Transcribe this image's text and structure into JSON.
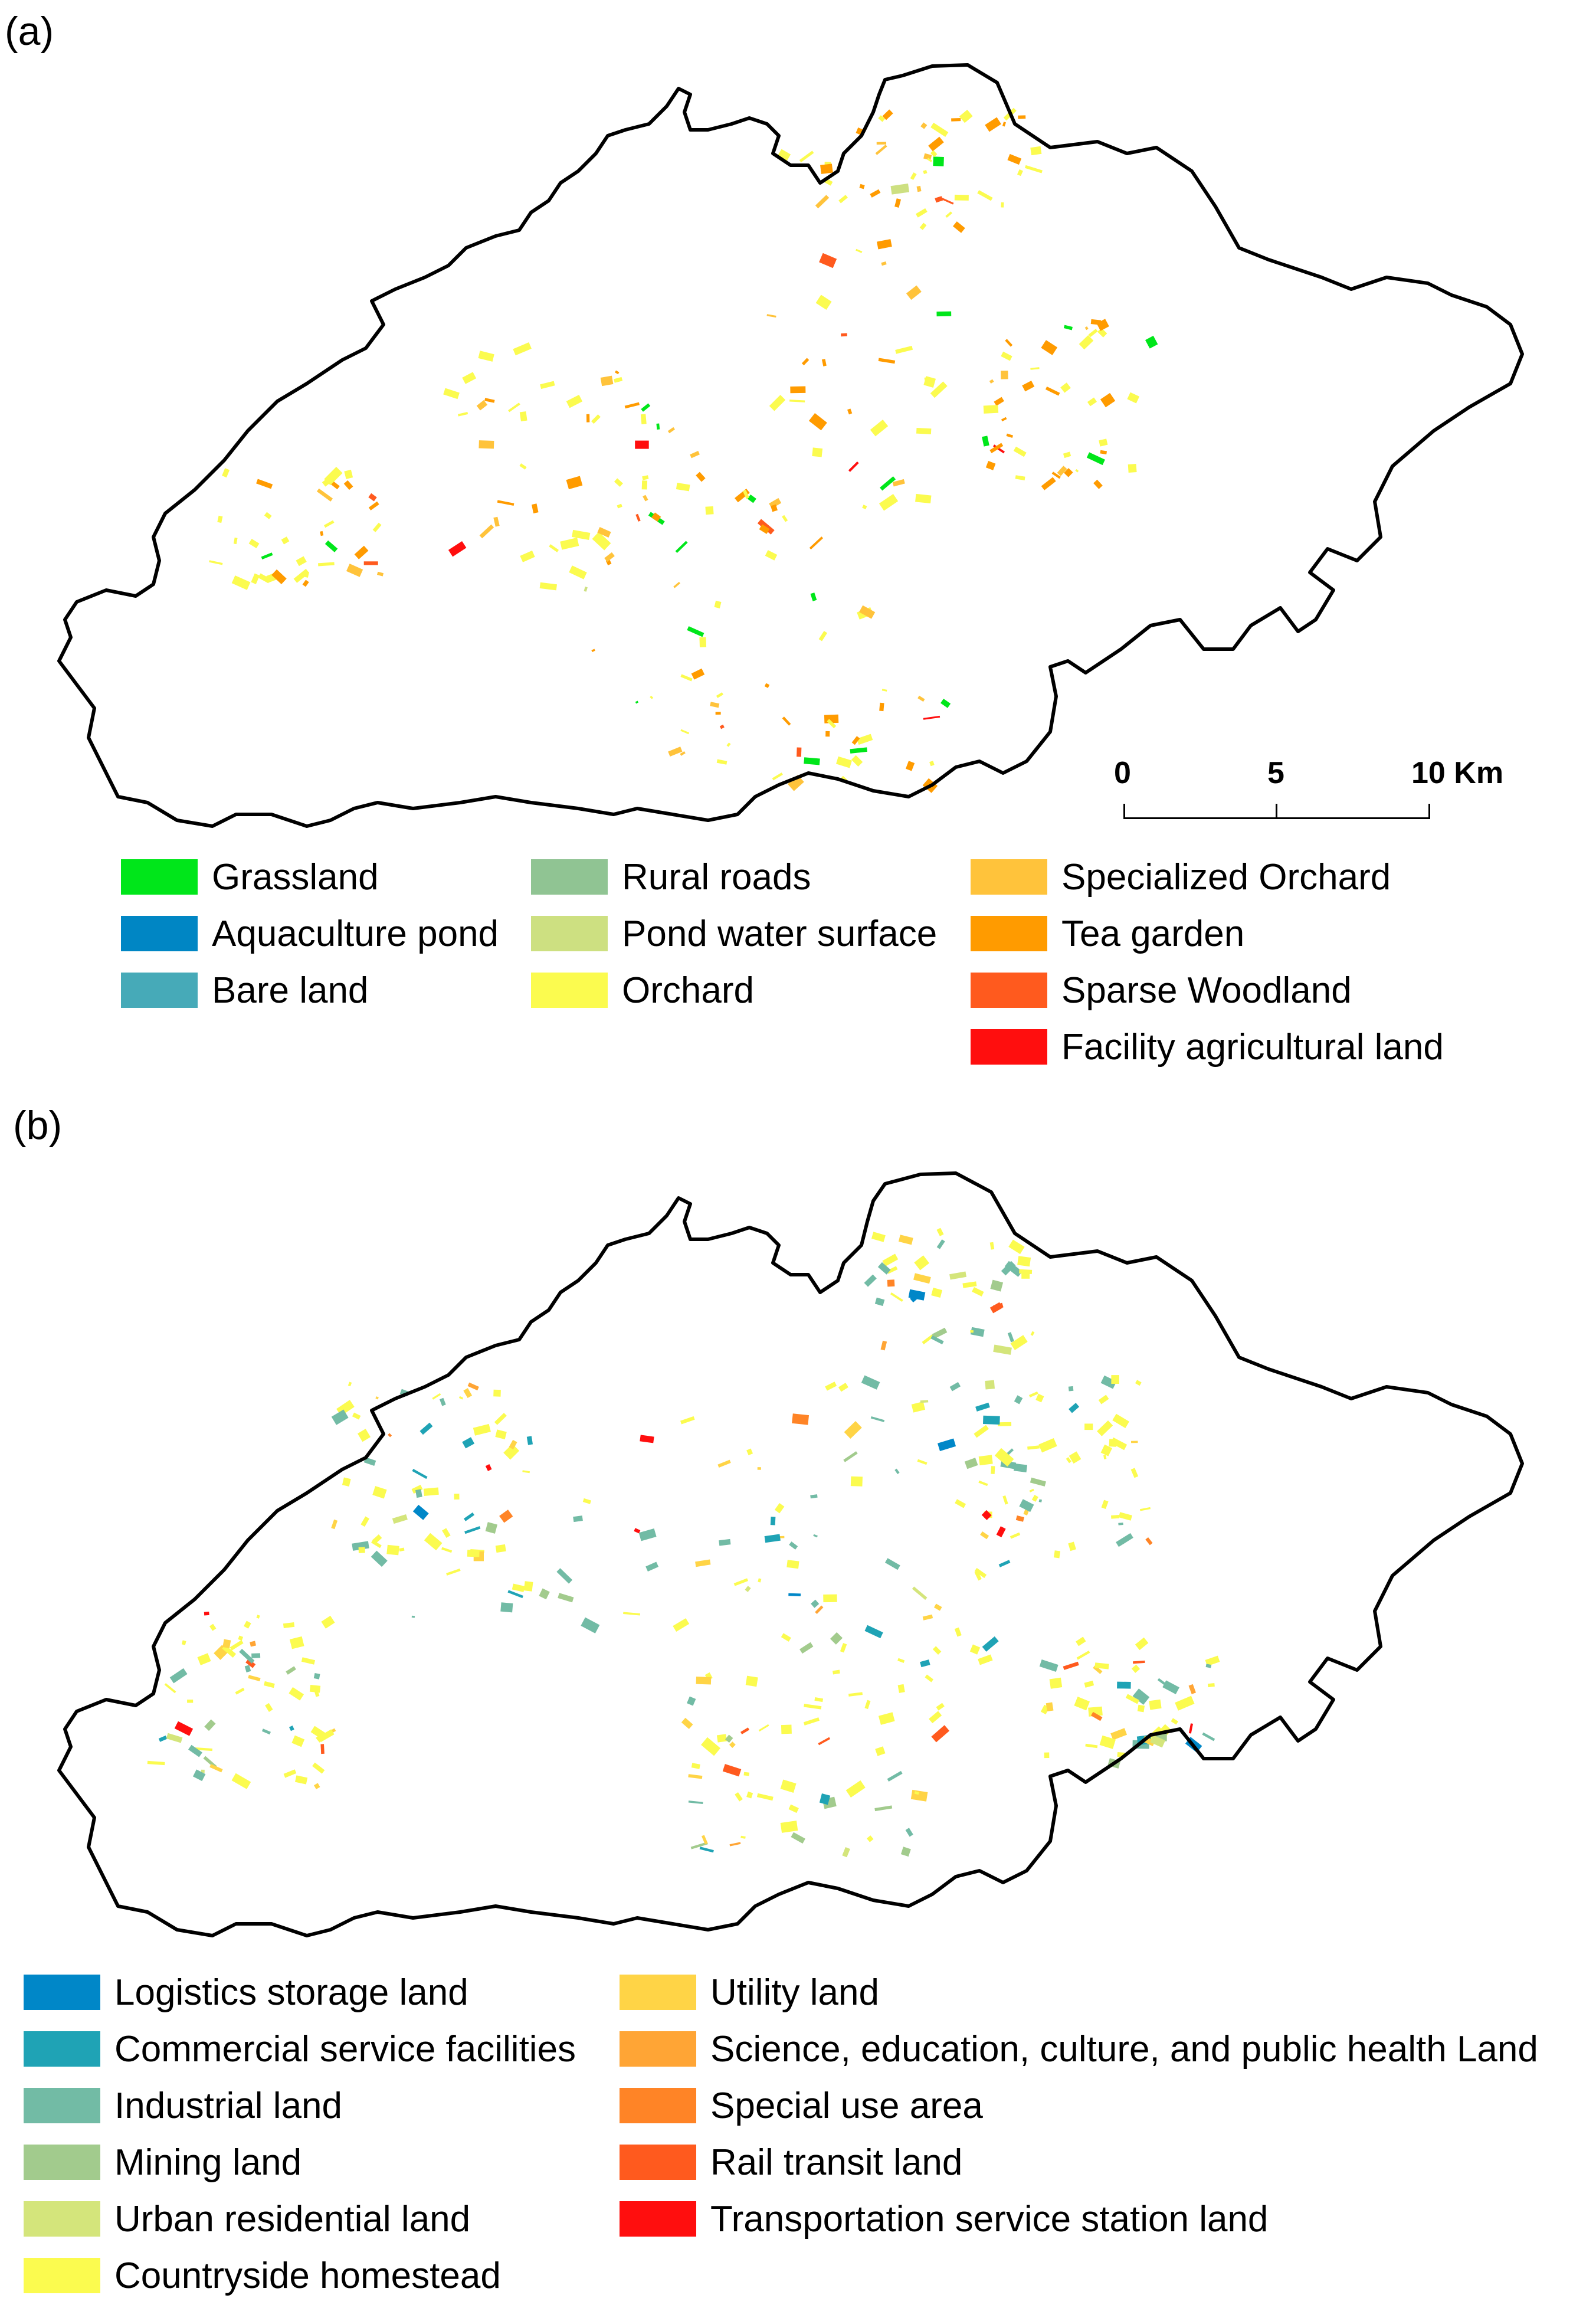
{
  "panel_a": {
    "label": "(a)",
    "scale": {
      "ticks": [
        "0",
        "5",
        "10 Km"
      ]
    },
    "legend": [
      {
        "label": "Grassland",
        "color": "#00e61a"
      },
      {
        "label": "Aquaculture pond",
        "color": "#0086c4"
      },
      {
        "label": "Bare land",
        "color": "#46aab8"
      },
      {
        "label": "Rural roads",
        "color": "#90c493"
      },
      {
        "label": "Pond water surface",
        "color": "#cde081"
      },
      {
        "label": "Orchard",
        "color": "#fbfb4f"
      },
      {
        "label": "Specialized Orchard",
        "color": "#ffc33b"
      },
      {
        "label": "Tea garden",
        "color": "#ff9b00"
      },
      {
        "label": "Sparse Woodland",
        "color": "#ff5a1e"
      },
      {
        "label": "Facility agricultural land",
        "color": "#ff0e0e"
      }
    ]
  },
  "panel_b": {
    "label": "(b)",
    "legend": [
      {
        "label": "Logistics storage land",
        "color": "#0087c8"
      },
      {
        "label": "Commercial service facilities",
        "color": "#1fa3b5"
      },
      {
        "label": "Industrial land",
        "color": "#72bba5"
      },
      {
        "label": "Mining land",
        "color": "#a2cb8d"
      },
      {
        "label": "Urban residential land",
        "color": "#d4e57b"
      },
      {
        "label": "Countryside homestead",
        "color": "#fbfb4f"
      },
      {
        "label": "Utility land",
        "color": "#ffd446"
      },
      {
        "label": "Science, education, culture, and public health Land",
        "color": "#ffa535"
      },
      {
        "label": "Special use area",
        "color": "#ff8426"
      },
      {
        "label": "Rail transit land",
        "color": "#ff5a1e"
      },
      {
        "label": "Transportation service station land",
        "color": "#ff0e0e"
      }
    ]
  }
}
